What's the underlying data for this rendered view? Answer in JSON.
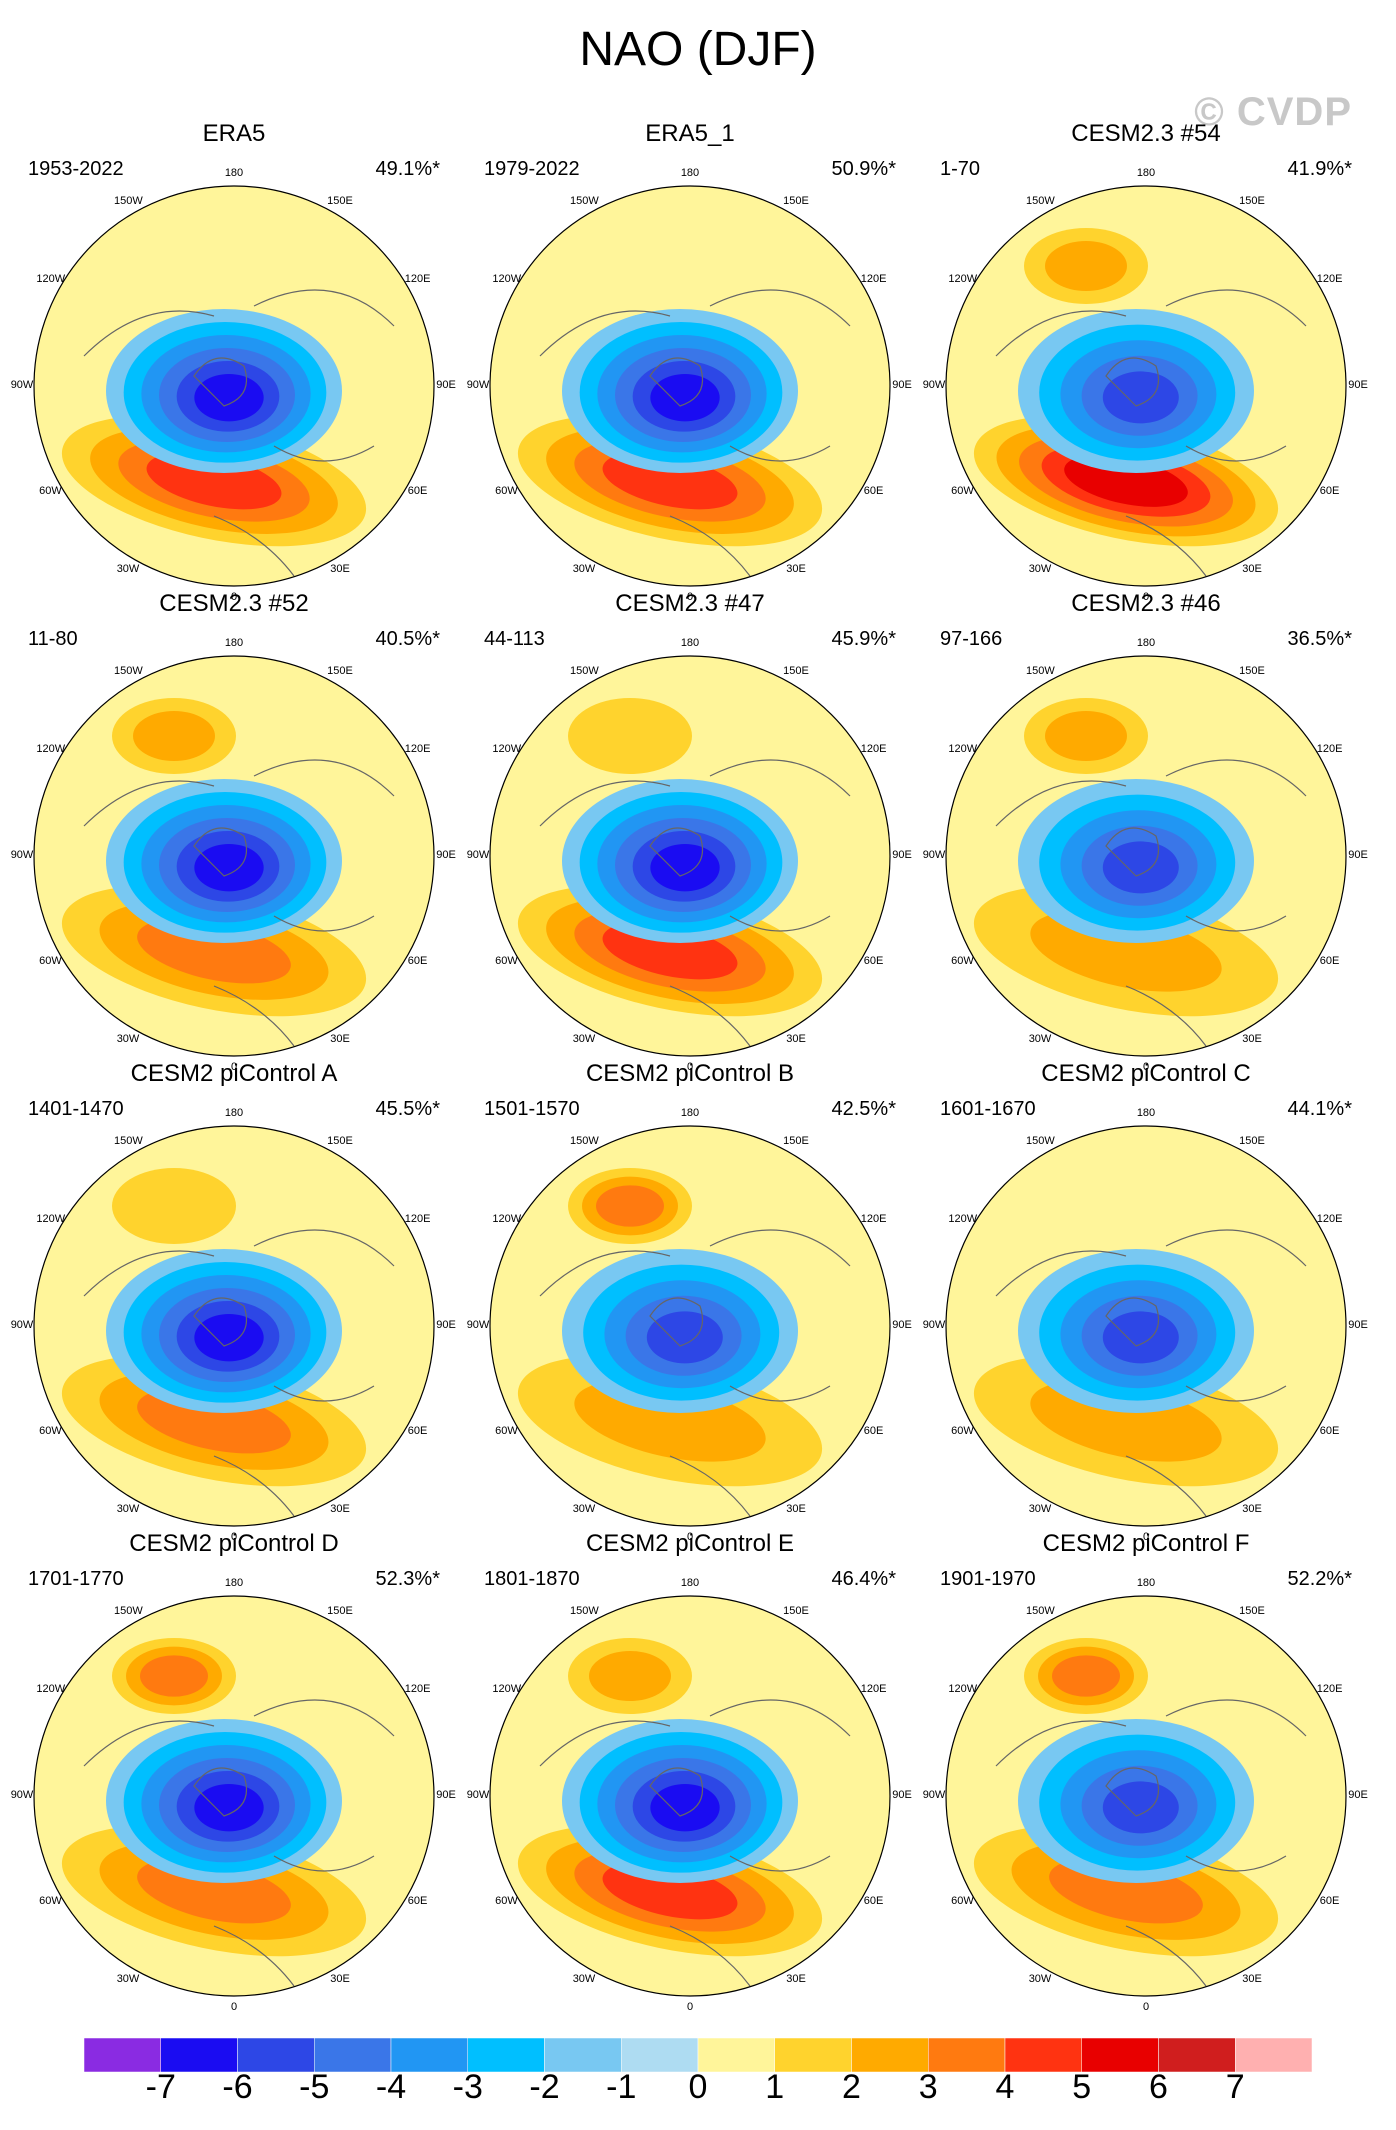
{
  "title": "NAO (DJF)",
  "watermark": "© CVDP",
  "panels": [
    {
      "name": "ERA5",
      "period": "1953-2022",
      "pct": "49.1%*"
    },
    {
      "name": "ERA5_1",
      "period": "1979-2022",
      "pct": "50.9%*"
    },
    {
      "name": "CESM2.3 #54",
      "period": "1-70",
      "pct": "41.9%*"
    },
    {
      "name": "CESM2.3 #52",
      "period": "11-80",
      "pct": "40.5%*"
    },
    {
      "name": "CESM2.3 #47",
      "period": "44-113",
      "pct": "45.9%*"
    },
    {
      "name": "CESM2.3 #46",
      "period": "97-166",
      "pct": "36.5%*"
    },
    {
      "name": "CESM2 piControl A",
      "period": "1401-1470",
      "pct": "45.5%*"
    },
    {
      "name": "CESM2 piControl B",
      "period": "1501-1570",
      "pct": "42.5%*"
    },
    {
      "name": "CESM2 piControl C",
      "period": "1601-1670",
      "pct": "44.1%*"
    },
    {
      "name": "CESM2 piControl D",
      "period": "1701-1770",
      "pct": "52.3%*"
    },
    {
      "name": "CESM2 piControl E",
      "period": "1801-1870",
      "pct": "46.4%*"
    },
    {
      "name": "CESM2 piControl F",
      "period": "1901-1970",
      "pct": "52.2%*"
    }
  ],
  "lon_labels": [
    "180",
    "150E",
    "120E",
    "90E",
    "60E",
    "30E",
    "0",
    "30W",
    "60W",
    "90W",
    "120W",
    "150W"
  ],
  "chart_data": {
    "type": "heatmap",
    "title": "NAO (DJF)",
    "projection": "polar stereographic, Northern Hemisphere",
    "colorbar": {
      "levels": [
        -7,
        -6,
        -5,
        -4,
        -3,
        -2,
        -1,
        0,
        1,
        2,
        3,
        4,
        5,
        6,
        7
      ],
      "labels": [
        "-7",
        "-6",
        "-5",
        "-4",
        "-3",
        "-2",
        "-1",
        "0",
        "1",
        "2",
        "3",
        "4",
        "5",
        "6",
        "7"
      ],
      "colors": [
        "#8a2be2",
        "#1a0cf2",
        "#2d47e6",
        "#3a76e8",
        "#2196f3",
        "#00bfff",
        "#78c8f2",
        "#aedcf2",
        "#fff59a",
        "#ffd32d",
        "#ffaa00",
        "#ff7a10",
        "#ff3311",
        "#e80000",
        "#d01e1e",
        "#ffb0b0"
      ]
    },
    "features": [
      {
        "center_min": -6,
        "center_max": 4,
        "pac_max": 0
      },
      {
        "center_min": -6,
        "center_max": 4,
        "pac_max": 0
      },
      {
        "center_min": -5,
        "center_max": 5,
        "pac_max": 2
      },
      {
        "center_min": -6,
        "center_max": 3,
        "pac_max": 2
      },
      {
        "center_min": -6,
        "center_max": 4,
        "pac_max": 1
      },
      {
        "center_min": -5,
        "center_max": 2,
        "pac_max": 2
      },
      {
        "center_min": -6,
        "center_max": 3,
        "pac_max": 1
      },
      {
        "center_min": -5,
        "center_max": 2,
        "pac_max": 3
      },
      {
        "center_min": -5,
        "center_max": 2,
        "pac_max": 0
      },
      {
        "center_min": -6,
        "center_max": 3,
        "pac_max": 3
      },
      {
        "center_min": -6,
        "center_max": 4,
        "pac_max": 2
      },
      {
        "center_min": -5,
        "center_max": 3,
        "pac_max": 3
      }
    ]
  }
}
